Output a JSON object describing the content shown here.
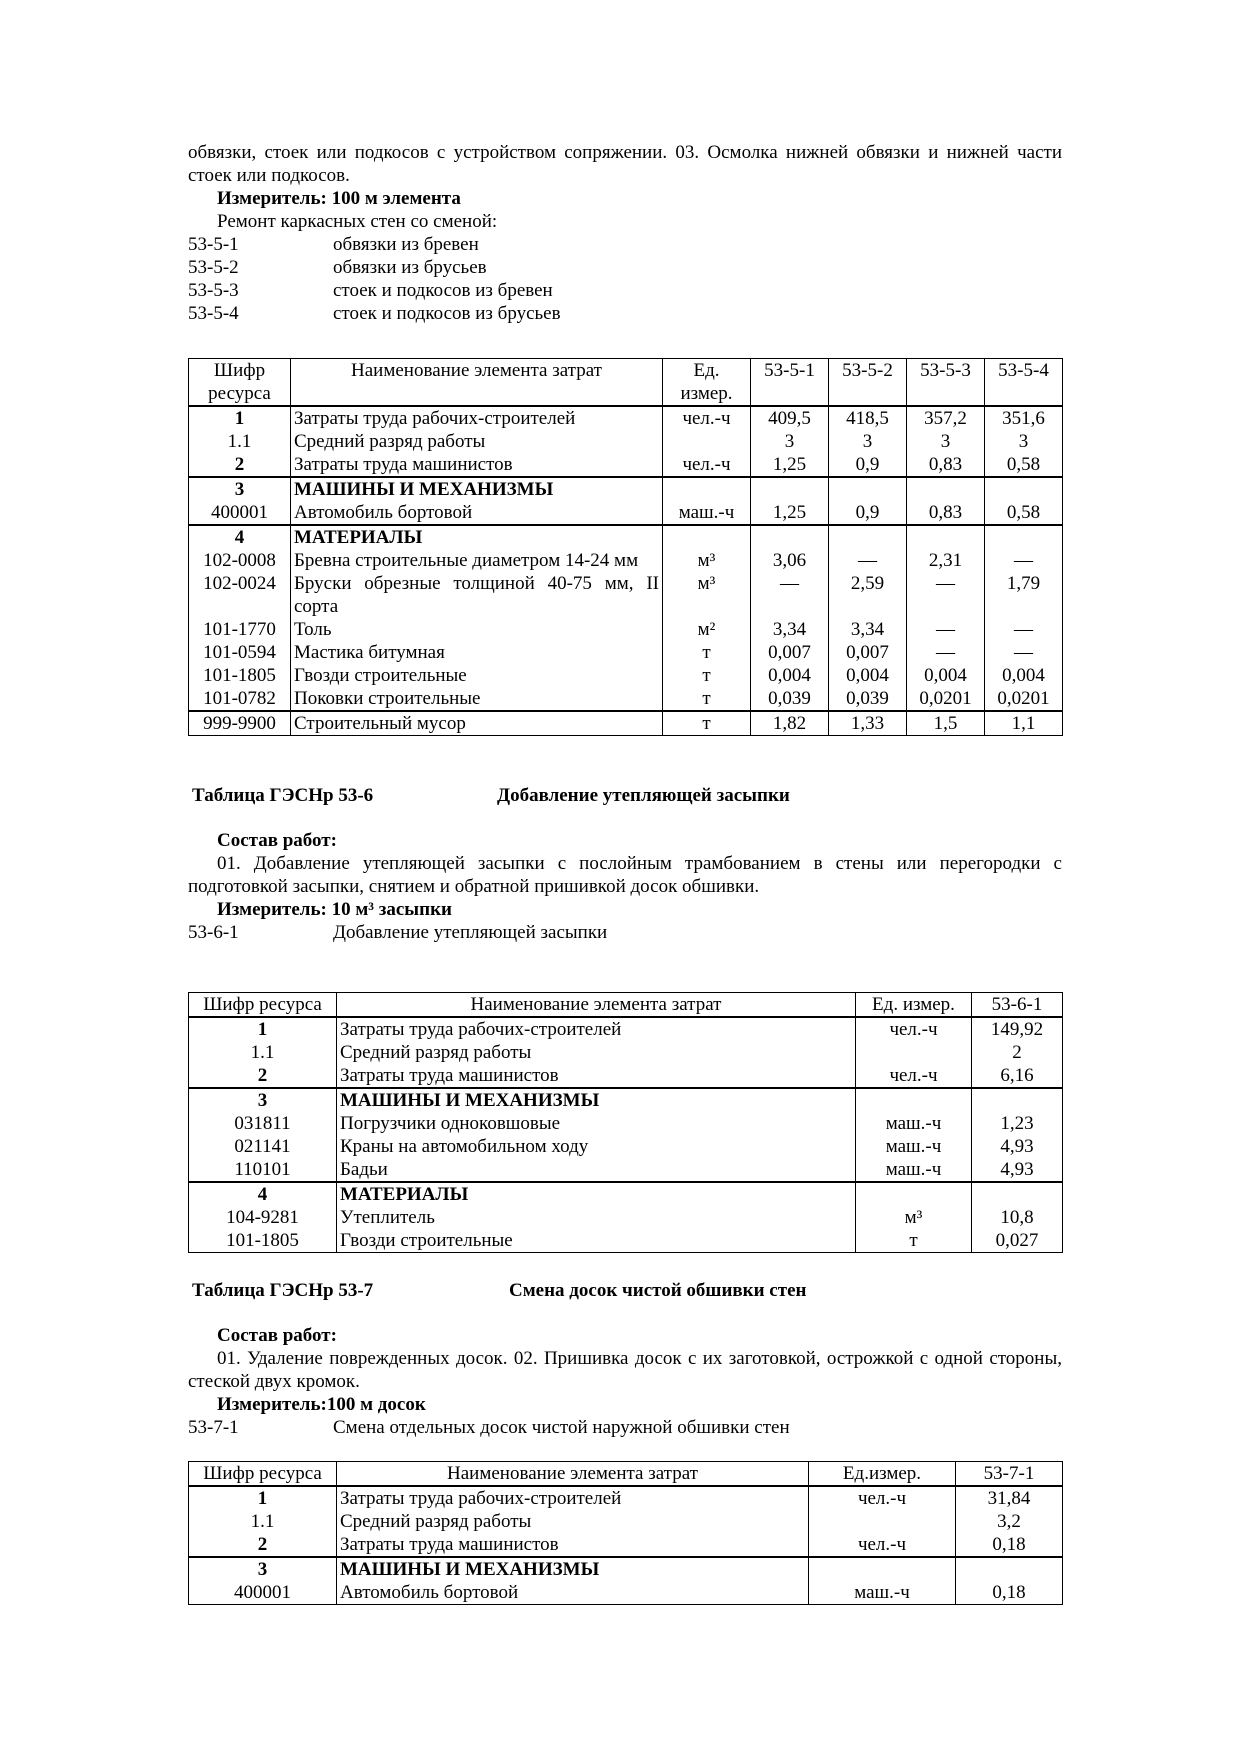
{
  "section53_5": {
    "intro": "обвязки, стоек или подкосов с устройством сопряжении. 03. Осмолка нижней обвязки и нижней части стоек или подкосов.",
    "meter": "Измеритель: 100 м элемента",
    "subtitle": "Ремонт каркасных стен со сменой:",
    "codes": [
      {
        "code": "53-5-1",
        "text": "обвязки из бревен"
      },
      {
        "code": "53-5-2",
        "text": "обвязки из брусьев"
      },
      {
        "code": "53-5-3",
        "text": "стоек и подкосов из бревен"
      },
      {
        "code": "53-5-4",
        "text": "стоек и подкосов из брусьев"
      }
    ]
  },
  "table1": {
    "headers": [
      "Шифр ресурса",
      "Наименование элемента затрат",
      "Ед. измер.",
      "53-5-1",
      "53-5-2",
      "53-5-3",
      "53-5-4"
    ],
    "groups": [
      [
        {
          "code": "1",
          "bold": true,
          "name": "Затраты труда рабочих-строителей",
          "unit": "чел.-ч",
          "values": [
            "409,5",
            "418,5",
            "357,2",
            "351,6"
          ]
        },
        {
          "code": "1.1",
          "name": "Средний разряд работы",
          "unit": "",
          "values": [
            "3",
            "3",
            "3",
            "3"
          ]
        },
        {
          "code": "2",
          "bold": true,
          "name": "Затраты труда машинистов",
          "unit": "чел.-ч",
          "values": [
            "1,25",
            "0,9",
            "0,83",
            "0,58"
          ]
        }
      ],
      [
        {
          "code": "3",
          "bold": true,
          "name": "МАШИНЫ И МЕХАНИЗМЫ",
          "nameBold": true,
          "unit": "",
          "values": [
            "",
            "",
            "",
            ""
          ]
        },
        {
          "code": "400001",
          "name": "Автомобиль бортовой",
          "unit": "маш.-ч",
          "values": [
            "1,25",
            "0,9",
            "0,83",
            "0,58"
          ]
        }
      ],
      [
        {
          "code": "4",
          "bold": true,
          "name": "МАТЕРИАЛЫ",
          "nameBold": true,
          "unit": "",
          "values": [
            "",
            "",
            "",
            ""
          ]
        },
        {
          "code": "102-0008",
          "name": "Бревна строительные диаметром 14-24 мм",
          "unit": "м³",
          "values": [
            "3,06",
            "—",
            "2,31",
            "—"
          ]
        },
        {
          "code": "102-0024",
          "name": "Бруски обрезные толщиной 40-75 мм, II сорта",
          "unit": "м³",
          "values": [
            "—",
            "2,59",
            "—",
            "1,79"
          ]
        },
        {
          "code": "101-1770",
          "name": "Толь",
          "unit": "м²",
          "values": [
            "3,34",
            "3,34",
            "—",
            "—"
          ]
        },
        {
          "code": "101-0594",
          "name": "Мастика битумная",
          "unit": "т",
          "values": [
            "0,007",
            "0,007",
            "—",
            "—"
          ]
        },
        {
          "code": "101-1805",
          "name": "Гвозди строительные",
          "unit": "т",
          "values": [
            "0,004",
            "0,004",
            "0,004",
            "0,004"
          ]
        },
        {
          "code": "101-0782",
          "name": "Поковки строительные",
          "unit": "т",
          "values": [
            "0,039",
            "0,039",
            "0,0201",
            "0,0201"
          ]
        }
      ],
      [
        {
          "code": "999-9900",
          "name": "Строительный мусор",
          "unit": "т",
          "values": [
            "1,82",
            "1,33",
            "1,5",
            "1,1"
          ]
        }
      ]
    ]
  },
  "section53_6": {
    "table_label": "Таблица ГЭСНр 53-6",
    "table_title": "Добавление утепляющей засыпки",
    "works_label": "Состав работ:",
    "works": "01. Добавление утепляющей засыпки с послойным трамбованием в стены или перегородки с подготовкой засыпки, снятием и обратной пришивкой досок обшивки.",
    "meter": "Измеритель: 10 м³ засыпки",
    "codes": [
      {
        "code": "53-6-1",
        "text": "Добавление утепляющей засыпки"
      }
    ]
  },
  "table2": {
    "headers": [
      "Шифр ресурса",
      "Наименование элемента затрат",
      "Ед. измер.",
      "53-6-1"
    ],
    "groups": [
      [
        {
          "code": "1",
          "bold": true,
          "name": "Затраты труда рабочих-строителей",
          "unit": "чел.-ч",
          "values": [
            "149,92"
          ]
        },
        {
          "code": "1.1",
          "name": "Средний разряд работы",
          "unit": "",
          "values": [
            "2"
          ]
        },
        {
          "code": "2",
          "bold": true,
          "name": "Затраты труда машинистов",
          "unit": "чел.-ч",
          "values": [
            "6,16"
          ]
        }
      ],
      [
        {
          "code": "3",
          "bold": true,
          "name": "МАШИНЫ И МЕХАНИЗМЫ",
          "nameBold": true,
          "unit": "",
          "values": [
            ""
          ]
        },
        {
          "code": "031811",
          "name": "Погрузчики одноковшовые",
          "unit": "маш.-ч",
          "values": [
            "1,23"
          ]
        },
        {
          "code": "021141",
          "name": "Краны на автомобильном ходу",
          "unit": "маш.-ч",
          "values": [
            "4,93"
          ]
        },
        {
          "code": "110101",
          "name": "Бадьи",
          "unit": "маш.-ч",
          "values": [
            "4,93"
          ]
        }
      ],
      [
        {
          "code": "4",
          "bold": true,
          "name": "МАТЕРИАЛЫ",
          "nameBold": true,
          "unit": "",
          "values": [
            ""
          ]
        },
        {
          "code": "104-9281",
          "name": "Утеплитель",
          "unit": "м³",
          "values": [
            "10,8"
          ]
        },
        {
          "code": "101-1805",
          "name": "Гвозди строительные",
          "unit": "т",
          "values": [
            "0,027"
          ]
        }
      ]
    ]
  },
  "section53_7": {
    "table_label": "Таблица ГЭСНр 53-7",
    "table_title": "Смена досок чистой обшивки стен",
    "works_label": "Состав работ:",
    "works": "01. Удаление поврежденных досок. 02. Пришивка досок с их заготовкой, острожкой с одной стороны, стеской двух кромок.",
    "meter": "Измеритель:100 м досок",
    "codes": [
      {
        "code": "53-7-1",
        "text": "Смена отдельных досок чистой наружной обшивки стен"
      }
    ]
  },
  "table3": {
    "headers": [
      "Шифр ресурса",
      "Наименование элемента затрат",
      "Ед.измер.",
      "53-7-1"
    ],
    "groups": [
      [
        {
          "code": "1",
          "bold": true,
          "name": "Затраты труда рабочих-строителей",
          "unit": "чел.-ч",
          "values": [
            "31,84"
          ]
        },
        {
          "code": "1.1",
          "name": "Средний разряд работы",
          "unit": "",
          "values": [
            "3,2"
          ]
        },
        {
          "code": "2",
          "bold": true,
          "name": "Затраты труда машинистов",
          "unit": "чел.-ч",
          "values": [
            "0,18"
          ]
        }
      ],
      [
        {
          "code": "3",
          "bold": true,
          "name": "МАШИНЫ И МЕХАНИЗМЫ",
          "nameBold": true,
          "unit": "",
          "values": [
            ""
          ]
        },
        {
          "code": "400001",
          "name": "Автомобиль бортовой",
          "unit": "маш.-ч",
          "values": [
            "0,18"
          ]
        }
      ]
    ]
  }
}
